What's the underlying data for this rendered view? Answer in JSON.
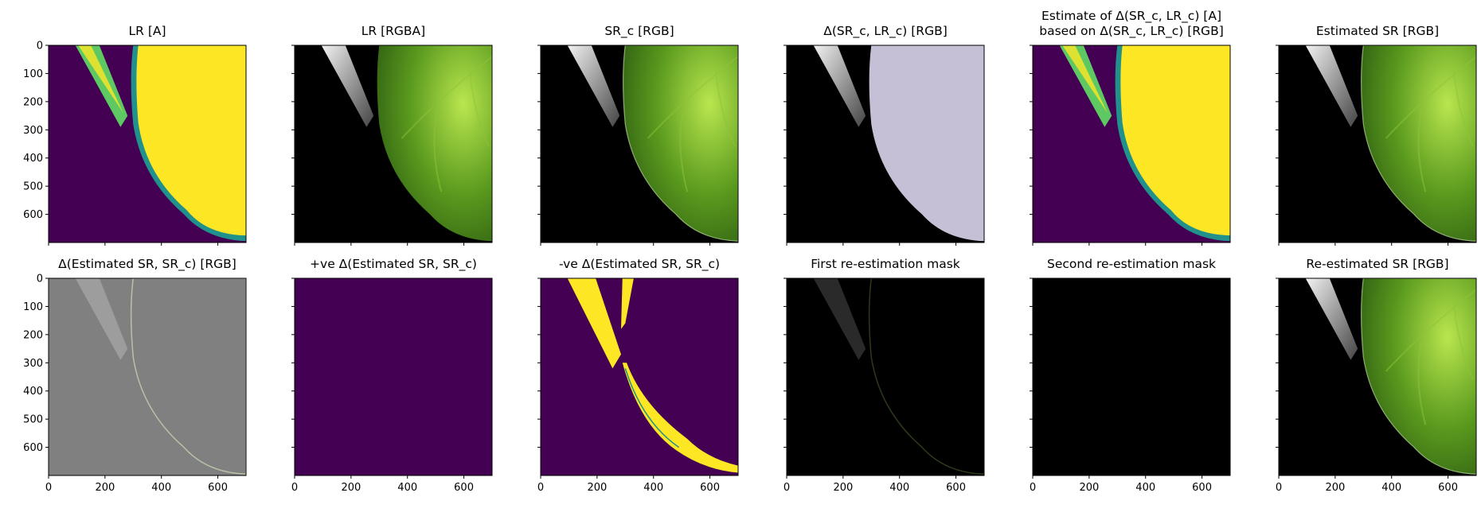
{
  "figure": {
    "axis": {
      "ticks": [
        0,
        200,
        400,
        600
      ],
      "y_ticks": [
        0,
        100,
        200,
        300,
        400,
        500,
        600
      ],
      "range": [
        0,
        700
      ]
    },
    "panels": [
      {
        "key": "lr_a",
        "title": "LR [A]",
        "kind": "viridis_mask",
        "show_y_labels": true,
        "show_x_labels": false
      },
      {
        "key": "lr_rgba",
        "title": "LR [RGBA]",
        "kind": "leaf_pixel",
        "show_y_labels": false,
        "show_x_labels": false
      },
      {
        "key": "sr_c",
        "title": "SR_c [RGB]",
        "kind": "leaf_smooth",
        "show_y_labels": false,
        "show_x_labels": false
      },
      {
        "key": "delta_sr_lr",
        "title": "Δ(SR_c, LR_c) [RGB]",
        "kind": "lavender",
        "show_y_labels": false,
        "show_x_labels": false
      },
      {
        "key": "estimate_delta",
        "title": "Estimate of Δ(SR_c, LR_c) [A]\nbased on Δ(SR_c, LR_c) [RGB]",
        "kind": "viridis_mask",
        "show_y_labels": false,
        "show_x_labels": false
      },
      {
        "key": "estimated_sr",
        "title": "Estimated SR [RGB]",
        "kind": "leaf_smooth",
        "show_y_labels": false,
        "show_x_labels": false
      },
      {
        "key": "delta_est_sr",
        "title": "Δ(Estimated SR, SR_c) [RGB]",
        "kind": "gray_diff",
        "show_y_labels": true,
        "show_x_labels": true
      },
      {
        "key": "pos_delta",
        "title": "+ve Δ(Estimated SR, SR_c)",
        "kind": "purple_flat",
        "show_y_labels": false,
        "show_x_labels": true
      },
      {
        "key": "neg_delta",
        "title": "-ve Δ(Estimated SR, SR_c)",
        "kind": "neg_mask",
        "show_y_labels": false,
        "show_x_labels": true
      },
      {
        "key": "first_mask",
        "title": "First re-estimation mask",
        "kind": "dark_edges",
        "show_y_labels": false,
        "show_x_labels": true
      },
      {
        "key": "second_mask",
        "title": "Second re-estimation mask",
        "kind": "black",
        "show_y_labels": false,
        "show_x_labels": true
      },
      {
        "key": "re_estimated_sr",
        "title": "Re-estimated SR [RGB]",
        "kind": "leaf_smooth",
        "show_y_labels": false,
        "show_x_labels": true
      }
    ],
    "colors": {
      "viridis_dark": "#440154",
      "viridis_yellow": "#fde725",
      "viridis_mid": "#21918c",
      "viridis_green": "#5ec962",
      "leaf_dark": "#2f5e12",
      "leaf_mid": "#5a9a1e",
      "leaf_light": "#b9e64e",
      "lavender": "#c6c0d6",
      "diff_gray": "#808080"
    }
  }
}
